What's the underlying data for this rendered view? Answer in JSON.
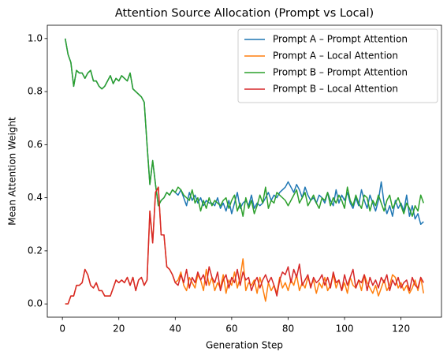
{
  "chart_data": {
    "type": "line",
    "title": "Attention Source Allocation (Prompt vs Local)",
    "xlabel": "Generation Step",
    "ylabel": "Mean Attention Weight",
    "legend": "upper right",
    "grid": false,
    "xlim": [
      -5.35,
      134.35
    ],
    "ylim": [
      -0.05,
      1.05
    ],
    "xticks": [
      0,
      20,
      40,
      60,
      80,
      100,
      120
    ],
    "yticks": [
      {
        "value": 0,
        "label": "0.0"
      },
      0.2,
      0.4,
      0.6,
      0.8,
      {
        "value": 1,
        "label": "1.0"
      }
    ],
    "x": [
      1,
      2,
      3,
      4,
      5,
      6,
      7,
      8,
      9,
      10,
      11,
      12,
      13,
      14,
      15,
      16,
      17,
      18,
      19,
      20,
      21,
      22,
      23,
      24,
      25,
      26,
      27,
      28,
      29,
      30,
      31,
      32,
      33,
      34,
      35,
      36,
      37,
      38,
      39,
      40,
      41,
      42,
      43,
      44,
      45,
      46,
      47,
      48,
      49,
      50,
      51,
      52,
      53,
      54,
      55,
      56,
      57,
      58,
      59,
      60,
      61,
      62,
      63,
      64,
      65,
      66,
      67,
      68,
      69,
      70,
      71,
      72,
      73,
      74,
      75,
      76,
      77,
      78,
      79,
      80,
      81,
      82,
      83,
      84,
      85,
      86,
      87,
      88,
      89,
      90,
      91,
      92,
      93,
      94,
      95,
      96,
      97,
      98,
      99,
      100,
      101,
      102,
      103,
      104,
      105,
      106,
      107,
      108,
      109,
      110,
      111,
      112,
      113,
      114,
      115,
      116,
      117,
      118,
      119,
      120,
      121,
      122,
      123,
      124,
      125,
      126,
      127,
      128
    ],
    "series": [
      {
        "name": "Prompt A – Prompt Attention",
        "color": "#1f77b4",
        "values": [
          1.0,
          0.94,
          0.91,
          0.82,
          0.88,
          0.87,
          0.87,
          0.85,
          0.87,
          0.88,
          0.84,
          0.84,
          0.82,
          0.81,
          0.82,
          0.84,
          0.86,
          0.83,
          0.85,
          0.84,
          0.86,
          0.85,
          0.84,
          0.87,
          0.81,
          0.8,
          0.79,
          0.78,
          0.76,
          0.6,
          0.45,
          0.54,
          0.45,
          0.37,
          0.39,
          0.4,
          0.42,
          0.41,
          0.43,
          0.42,
          0.41,
          0.43,
          0.4,
          0.37,
          0.42,
          0.39,
          0.41,
          0.38,
          0.4,
          0.37,
          0.39,
          0.38,
          0.38,
          0.37,
          0.4,
          0.36,
          0.38,
          0.35,
          0.39,
          0.34,
          0.38,
          0.42,
          0.36,
          0.38,
          0.39,
          0.37,
          0.41,
          0.36,
          0.38,
          0.37,
          0.38,
          0.4,
          0.42,
          0.39,
          0.41,
          0.4,
          0.42,
          0.43,
          0.44,
          0.46,
          0.44,
          0.42,
          0.45,
          0.43,
          0.4,
          0.44,
          0.41,
          0.39,
          0.4,
          0.38,
          0.41,
          0.4,
          0.38,
          0.42,
          0.39,
          0.37,
          0.43,
          0.38,
          0.41,
          0.39,
          0.42,
          0.38,
          0.36,
          0.4,
          0.37,
          0.43,
          0.39,
          0.36,
          0.41,
          0.38,
          0.35,
          0.39,
          0.46,
          0.38,
          0.34,
          0.37,
          0.33,
          0.39,
          0.36,
          0.38,
          0.35,
          0.41,
          0.33,
          0.37,
          0.32,
          0.34,
          0.3,
          0.31
        ]
      },
      {
        "name": "Prompt A – Local Attention",
        "color": "#ff7f0e",
        "values": [
          0,
          0,
          0.03,
          0.03,
          0.07,
          0.07,
          0.08,
          0.13,
          0.11,
          0.07,
          0.06,
          0.08,
          0.05,
          0.05,
          0.03,
          0.03,
          0.03,
          0.06,
          0.09,
          0.08,
          0.09,
          0.08,
          0.1,
          0.07,
          0.1,
          0.05,
          0.09,
          0.1,
          0.07,
          0.09,
          0.35,
          0.23,
          0.42,
          0.44,
          0.26,
          0.26,
          0.14,
          0.13,
          0.11,
          0.08,
          0.09,
          0.12,
          0.07,
          0.05,
          0.1,
          0.08,
          0.06,
          0.11,
          0.09,
          0.05,
          0.13,
          0.07,
          0.1,
          0.05,
          0.08,
          0.06,
          0.11,
          0.04,
          0.09,
          0.07,
          0.12,
          0.06,
          0.1,
          0.17,
          0.05,
          0.08,
          0.07,
          0.09,
          0.04,
          0.1,
          0.06,
          0.01,
          0.08,
          0.05,
          0.07,
          0.04,
          0.1,
          0.06,
          0.08,
          0.05,
          0.09,
          0.07,
          0.11,
          0.05,
          0.08,
          0.06,
          0.1,
          0.07,
          0.09,
          0.04,
          0.08,
          0.06,
          0.1,
          0.05,
          0.07,
          0.11,
          0.06,
          0.09,
          0.05,
          0.08,
          0.04,
          0.1,
          0.07,
          0.06,
          0.09,
          0.05,
          0.11,
          0.08,
          0.06,
          0.04,
          0.07,
          0.03,
          0.06,
          0.09,
          0.05,
          0.07,
          0.11,
          0.1,
          0.06,
          0.08,
          0.05,
          0.07,
          0.04,
          0.06,
          0.09,
          0.05,
          0.1,
          0.04
        ]
      },
      {
        "name": "Prompt B – Prompt Attention",
        "color": "#2ca02c",
        "values": [
          1.0,
          0.94,
          0.91,
          0.82,
          0.88,
          0.87,
          0.87,
          0.85,
          0.87,
          0.88,
          0.84,
          0.84,
          0.82,
          0.81,
          0.82,
          0.84,
          0.86,
          0.83,
          0.85,
          0.84,
          0.86,
          0.85,
          0.84,
          0.87,
          0.81,
          0.8,
          0.79,
          0.78,
          0.76,
          0.6,
          0.45,
          0.54,
          0.45,
          0.37,
          0.39,
          0.4,
          0.42,
          0.41,
          0.43,
          0.42,
          0.44,
          0.43,
          0.41,
          0.4,
          0.39,
          0.43,
          0.38,
          0.4,
          0.35,
          0.39,
          0.36,
          0.4,
          0.37,
          0.39,
          0.38,
          0.37,
          0.39,
          0.4,
          0.36,
          0.39,
          0.41,
          0.35,
          0.38,
          0.33,
          0.4,
          0.36,
          0.39,
          0.34,
          0.37,
          0.41,
          0.38,
          0.44,
          0.36,
          0.39,
          0.38,
          0.42,
          0.41,
          0.4,
          0.39,
          0.37,
          0.39,
          0.41,
          0.43,
          0.38,
          0.4,
          0.42,
          0.37,
          0.39,
          0.41,
          0.38,
          0.36,
          0.4,
          0.39,
          0.42,
          0.37,
          0.4,
          0.38,
          0.41,
          0.39,
          0.36,
          0.44,
          0.39,
          0.37,
          0.41,
          0.38,
          0.36,
          0.41,
          0.4,
          0.35,
          0.39,
          0.37,
          0.41,
          0.38,
          0.35,
          0.39,
          0.41,
          0.36,
          0.38,
          0.4,
          0.37,
          0.34,
          0.38,
          0.36,
          0.33,
          0.37,
          0.35,
          0.41,
          0.38
        ]
      },
      {
        "name": "Prompt B – Local Attention",
        "color": "#d62728",
        "values": [
          0,
          0,
          0.03,
          0.03,
          0.07,
          0.07,
          0.08,
          0.13,
          0.11,
          0.07,
          0.06,
          0.08,
          0.05,
          0.05,
          0.03,
          0.03,
          0.03,
          0.06,
          0.09,
          0.08,
          0.09,
          0.08,
          0.1,
          0.07,
          0.1,
          0.05,
          0.09,
          0.1,
          0.07,
          0.09,
          0.35,
          0.23,
          0.42,
          0.44,
          0.26,
          0.26,
          0.14,
          0.13,
          0.11,
          0.08,
          0.07,
          0.11,
          0.08,
          0.13,
          0.06,
          0.1,
          0.08,
          0.12,
          0.09,
          0.11,
          0.07,
          0.14,
          0.1,
          0.08,
          0.12,
          0.05,
          0.09,
          0.11,
          0.06,
          0.1,
          0.08,
          0.13,
          0.07,
          0.12,
          0.09,
          0.1,
          0.05,
          0.08,
          0.1,
          0.06,
          0.09,
          0.11,
          0.08,
          0.1,
          0.07,
          0.03,
          0.09,
          0.12,
          0.11,
          0.14,
          0.08,
          0.13,
          0.1,
          0.15,
          0.07,
          0.09,
          0.11,
          0.06,
          0.1,
          0.08,
          0.09,
          0.11,
          0.07,
          0.1,
          0.06,
          0.12,
          0.08,
          0.09,
          0.05,
          0.11,
          0.07,
          0.1,
          0.13,
          0.06,
          0.09,
          0.08,
          0.11,
          0.05,
          0.1,
          0.07,
          0.09,
          0.06,
          0.1,
          0.08,
          0.11,
          0.05,
          0.09,
          0.07,
          0.1,
          0.06,
          0.08,
          0.09,
          0.05,
          0.1,
          0.07,
          0.06,
          0.1,
          0.08
        ]
      }
    ]
  }
}
